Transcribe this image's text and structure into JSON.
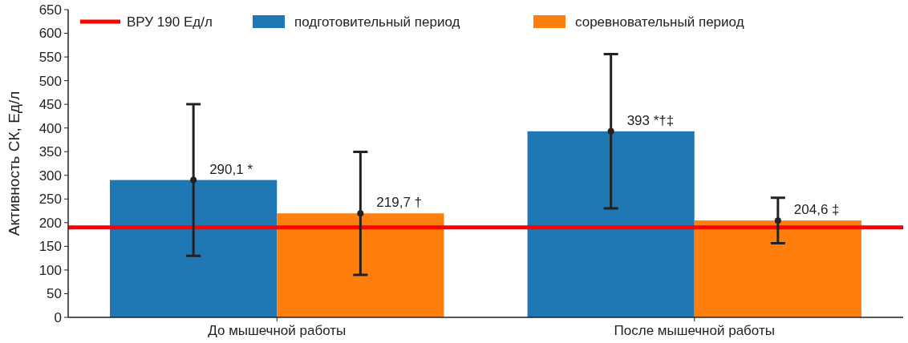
{
  "chart_data": {
    "type": "bar",
    "ylabel": "Активность СК, Ед/л",
    "categories": [
      "До мышечной работы",
      "После мышечной работы"
    ],
    "series": [
      {
        "name": "подготовительный период",
        "color": "#1f77b4",
        "values": [
          290.1,
          393
        ],
        "errors": [
          160,
          163
        ],
        "value_labels": [
          "290,1 *",
          "393 *†‡"
        ]
      },
      {
        "name": "соревновательный период",
        "color": "#ff7f0e",
        "values": [
          219.7,
          204.6
        ],
        "errors": [
          130,
          48
        ],
        "value_labels": [
          "219,7 †",
          "204,6 ‡"
        ]
      },
      {
        "type": "scatter",
        "color": "#222222",
        "x": [
          "До мышечной работы",
          "После мышечной работы"
        ],
        "values": [
          290.1,
          393
        ],
        "marker": "circle"
      },
      {
        "type": "scatter",
        "color": "#222222",
        "x": [
          "До мышечной работы",
          "После мышечной работы"
        ],
        "values": [
          219.7,
          204.6
        ],
        "marker": "circle"
      }
    ],
    "ylim": [
      0,
      650
    ],
    "yticks": [
      0,
      50,
      100,
      150,
      200,
      250,
      300,
      350,
      400,
      450,
      500,
      550,
      600,
      650
    ],
    "ref_lines": [
      {
        "axis": "y",
        "value": 190,
        "label": "ВРУ 190 Ед/л",
        "color": "#ff0000"
      }
    ],
    "legend": "top",
    "grid": false
  }
}
